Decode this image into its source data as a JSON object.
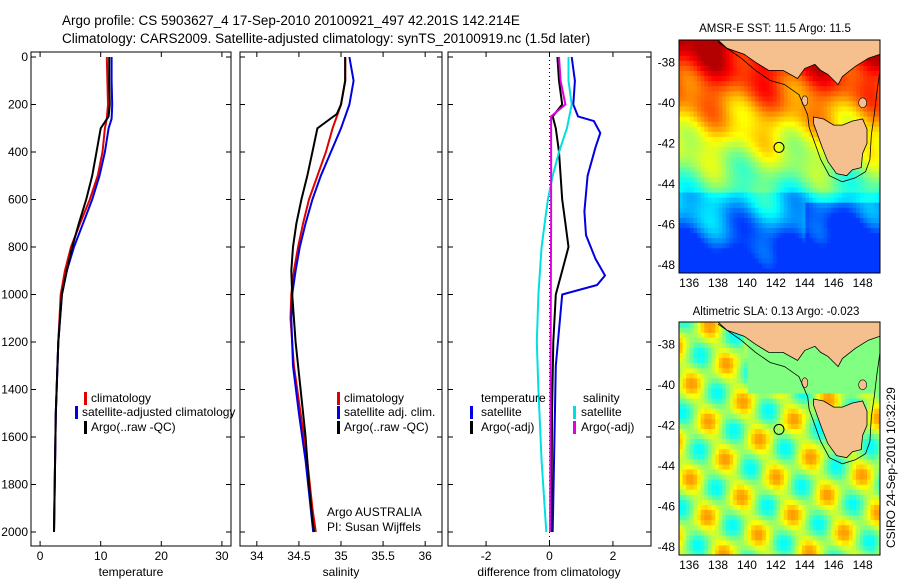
{
  "header": {
    "title_line1": "Argo profile: CS 5903627_4 17-Sep-2010 20100921_497 42.201S 142.214E",
    "title_line2": "Climatology: CARS2009. Satellite-adjusted climatology: synTS_20100919.nc (1.5d later)"
  },
  "colors": {
    "climatology": "#e00000",
    "satellite": "#0000e0",
    "argo": "#000000",
    "sat_salinity": "#00e0e0",
    "argo_salinity_adj": "#e000e0",
    "land": "#f5c08e",
    "float_marker": "#000000"
  },
  "chart_data": [
    {
      "type": "line",
      "xlabel": "temperature",
      "xlim": [
        -1.5,
        31.5
      ],
      "ylim": [
        2000,
        0
      ],
      "y_inverted": true,
      "xticks": [
        "0",
        "10",
        "20",
        "30"
      ],
      "xtick_values": [
        0,
        10,
        20,
        30
      ],
      "yticks": [
        "0",
        "200",
        "400",
        "600",
        "800",
        "1000",
        "1200",
        "1400",
        "1600",
        "1800",
        "2000"
      ],
      "ytick_values": [
        0,
        200,
        400,
        600,
        800,
        1000,
        1200,
        1400,
        1600,
        1800,
        2000
      ],
      "legend": [
        "climatology",
        "satellite-adjusted climatology",
        "Argo(..raw -QC)"
      ],
      "series": [
        {
          "name": "climatology",
          "color": "climatology",
          "x": [
            11.0,
            11.1,
            11.2,
            11.0,
            10.7,
            10.3,
            9.5,
            8.2,
            6.6,
            5.1,
            4.1,
            3.4,
            3.0,
            2.6,
            2.3
          ],
          "y": [
            0,
            100,
            200,
            260,
            300,
            400,
            500,
            600,
            700,
            800,
            900,
            1000,
            1200,
            1500,
            2000
          ]
        },
        {
          "name": "satellite-adjusted climatology",
          "color": "satellite",
          "x": [
            11.8,
            11.8,
            11.9,
            11.8,
            11.3,
            10.7,
            9.8,
            8.6,
            7.1,
            5.6,
            4.4,
            3.6,
            3.0,
            2.6,
            2.3
          ],
          "y": [
            0,
            100,
            200,
            260,
            300,
            400,
            500,
            600,
            700,
            800,
            900,
            1000,
            1200,
            1500,
            2000
          ]
        },
        {
          "name": "Argo(..raw -QC)",
          "color": "argo",
          "x": [
            11.4,
            11.4,
            11.5,
            11.3,
            10.0,
            9.3,
            8.6,
            7.6,
            6.4,
            5.3,
            4.4,
            3.6,
            3.0,
            2.6,
            2.3
          ],
          "y": [
            0,
            100,
            200,
            250,
            300,
            400,
            500,
            600,
            700,
            800,
            900,
            1000,
            1200,
            1500,
            2000
          ]
        }
      ]
    },
    {
      "type": "line",
      "xlabel": "salinity",
      "xlim": [
        33.8,
        36.2
      ],
      "ylim": [
        2000,
        0
      ],
      "y_inverted": true,
      "xticks": [
        "34",
        "34.5",
        "35",
        "35.5",
        "36"
      ],
      "xtick_values": [
        34,
        34.5,
        35,
        35.5,
        36
      ],
      "legend": [
        "climatology",
        "satellite adj. clim.",
        "Argo(..raw -QC)"
      ],
      "annotation": [
        "Argo AUSTRALIA",
        "PI: Susan Wijffels"
      ],
      "series": [
        {
          "name": "climatology",
          "color": "climatology",
          "x": [
            35.05,
            35.05,
            35.0,
            34.9,
            34.82,
            34.72,
            34.62,
            34.55,
            34.49,
            34.44,
            34.41,
            34.4,
            34.44,
            34.52,
            34.6,
            34.66,
            34.7
          ],
          "y": [
            0,
            100,
            200,
            300,
            400,
            500,
            600,
            700,
            800,
            900,
            1000,
            1100,
            1300,
            1500,
            1700,
            1900,
            2000
          ]
        },
        {
          "name": "satellite adj. clim.",
          "color": "satellite",
          "x": [
            35.1,
            35.15,
            35.1,
            35.0,
            34.88,
            34.76,
            34.66,
            34.58,
            34.51,
            34.46,
            34.42,
            34.41,
            34.43,
            34.5,
            34.58,
            34.64,
            34.67
          ],
          "y": [
            0,
            100,
            200,
            300,
            400,
            500,
            600,
            700,
            800,
            900,
            1000,
            1100,
            1300,
            1500,
            1700,
            1900,
            2000
          ]
        },
        {
          "name": "Argo(..raw -QC)",
          "color": "argo",
          "x": [
            35.05,
            35.05,
            35.0,
            34.95,
            34.72,
            34.66,
            34.6,
            34.53,
            34.47,
            34.43,
            34.41,
            34.42,
            34.46,
            34.52,
            34.58,
            34.62,
            34.66,
            34.68
          ],
          "y": [
            0,
            100,
            200,
            240,
            300,
            400,
            500,
            600,
            700,
            800,
            900,
            1000,
            1200,
            1400,
            1600,
            1800,
            1950,
            2000
          ]
        }
      ]
    },
    {
      "type": "line",
      "xlabel": "difference from climatology",
      "xlim": [
        -3.2,
        3.2
      ],
      "ylim": [
        2000,
        0
      ],
      "y_inverted": true,
      "xticks": [
        "-2",
        "0",
        "2"
      ],
      "xtick_values": [
        -2,
        0,
        2
      ],
      "legend_temperature": {
        "heading": "temperature",
        "items": [
          "satellite",
          "Argo(-adj)"
        ]
      },
      "legend_salinity": {
        "heading": "salinity",
        "items": [
          "satellite",
          "Argo(-adj)"
        ]
      },
      "series": [
        {
          "name": "satellite",
          "group": "temperature",
          "color": "satellite",
          "x": [
            0.7,
            0.8,
            0.75,
            0.9,
            1.4,
            1.6,
            1.45,
            1.2,
            1.1,
            1.15,
            1.45,
            1.75,
            1.5,
            0.4,
            0.2,
            0.1
          ],
          "y": [
            0,
            100,
            200,
            250,
            270,
            320,
            380,
            500,
            650,
            750,
            850,
            920,
            960,
            1000,
            1300,
            2000
          ]
        },
        {
          "name": "Argo(-adj)",
          "group": "temperature",
          "color": "argo",
          "x": [
            0.25,
            0.3,
            0.4,
            0.1,
            0.2,
            0.3,
            0.35,
            0.4,
            0.5,
            0.6,
            0.4,
            0.2,
            0.12,
            0.08,
            0.06
          ],
          "y": [
            0,
            100,
            200,
            250,
            300,
            400,
            500,
            600,
            700,
            800,
            900,
            1000,
            1200,
            1500,
            2000
          ]
        },
        {
          "name": "satellite",
          "group": "salinity",
          "color": "sat_salinity",
          "x": [
            0.6,
            0.6,
            0.7,
            0.55,
            0.3,
            0.1,
            -0.05,
            -0.15,
            -0.25,
            -0.35,
            -0.4,
            -0.35,
            -0.25,
            -0.1
          ],
          "y": [
            0,
            100,
            200,
            300,
            400,
            500,
            600,
            700,
            800,
            1000,
            1200,
            1400,
            1700,
            2000
          ]
        },
        {
          "name": "Argo(-adj)",
          "group": "salinity",
          "color": "argo_salinity_adj",
          "x": [
            0.3,
            0.35,
            0.5,
            0.05,
            0.05,
            0.05,
            0.04,
            0.03,
            0.02
          ],
          "y": [
            0,
            100,
            200,
            250,
            400,
            700,
            1000,
            1500,
            2000
          ]
        }
      ]
    },
    {
      "type": "heatmap",
      "title": "AMSR-E SST: 11.5 Argo: 11.5",
      "lon_range": [
        135.3,
        149.2
      ],
      "lat_range": [
        -48.4,
        -36.9
      ],
      "xticks": [
        "136",
        "138",
        "140",
        "142",
        "144",
        "146",
        "148"
      ],
      "xtick_values": [
        136,
        138,
        140,
        142,
        144,
        146,
        148
      ],
      "yticks": [
        "-38",
        "-40",
        "-42",
        "-44",
        "-46",
        "-48"
      ],
      "ytick_values": [
        -38,
        -40,
        -42,
        -44,
        -46,
        -48
      ],
      "float_position": [
        142.214,
        -42.201
      ],
      "colormap": "jet",
      "value_range_C": [
        8,
        18
      ]
    },
    {
      "type": "heatmap",
      "title": "Altimetric SLA: 0.13 Argo: -0.023",
      "lon_range": [
        135.3,
        149.2
      ],
      "lat_range": [
        -48.4,
        -36.9
      ],
      "xticks": [
        "136",
        "138",
        "140",
        "142",
        "144",
        "146",
        "148"
      ],
      "xtick_values": [
        136,
        138,
        140,
        142,
        144,
        146,
        148
      ],
      "yticks": [
        "-38",
        "-40",
        "-42",
        "-44",
        "-46",
        "-48"
      ],
      "ytick_values": [
        -38,
        -40,
        -42,
        -44,
        -46,
        -48
      ],
      "float_position": [
        142.214,
        -42.201
      ],
      "colormap": "jet"
    }
  ],
  "side_label": "CSIRO 24-Sep-2010 10:32:29"
}
